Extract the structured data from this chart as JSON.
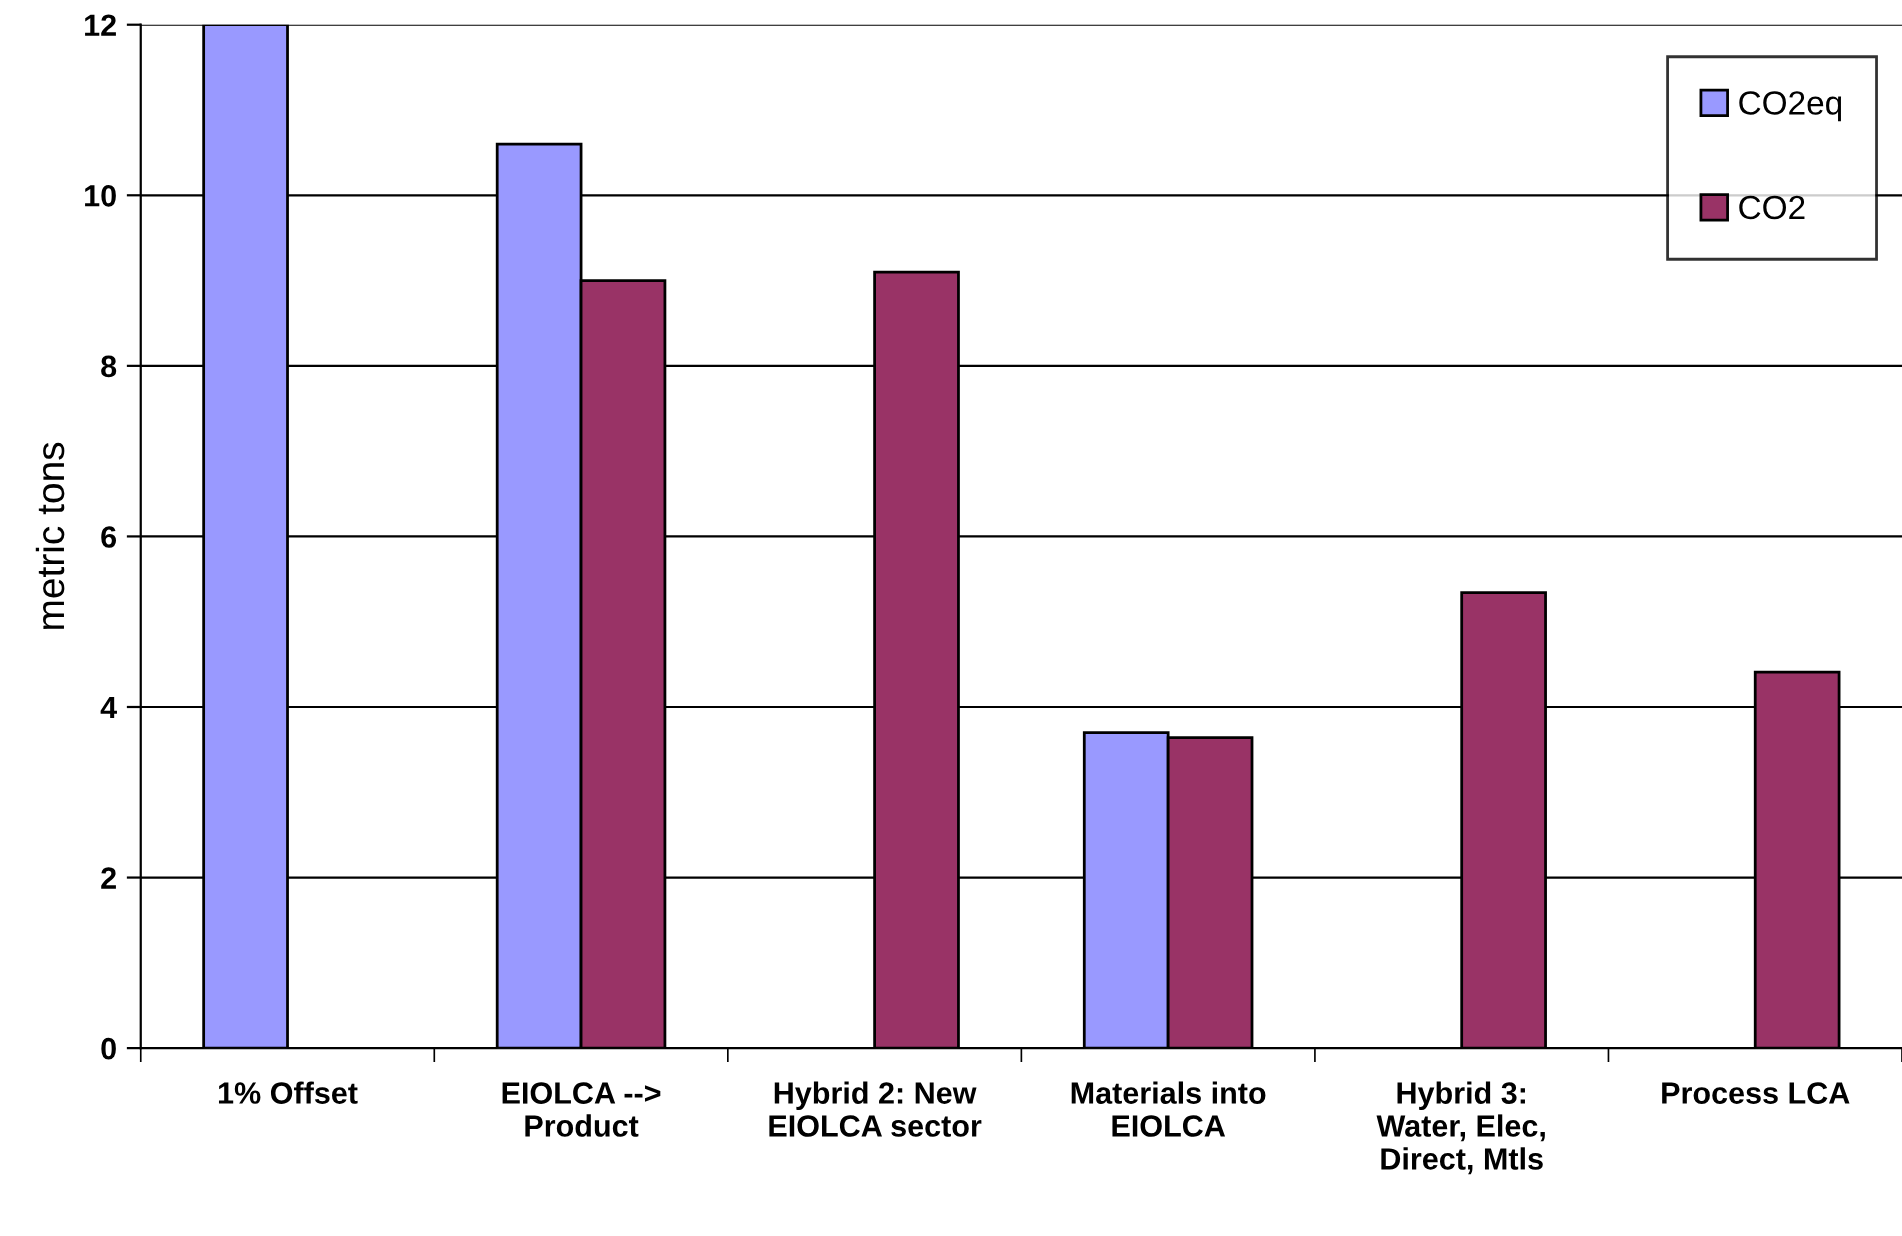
{
  "chart_data": {
    "type": "bar",
    "ylabel": "metric tons",
    "categories": [
      "1% Offset",
      "EIOLCA -->\nProduct",
      "Hybrid 2: New\nEIOLCA sector",
      "Materials into\nEIOLCA",
      "Hybrid 3:\nWater, Elec,\nDirect, Mtls",
      "Process LCA"
    ],
    "series": [
      {
        "name": "CO2eq",
        "color": "#9999ff",
        "values": [
          12.0,
          10.6,
          null,
          3.7,
          null,
          null
        ]
      },
      {
        "name": "CO2",
        "color": "#993366",
        "values": [
          null,
          9.0,
          9.1,
          3.64,
          5.34,
          4.41
        ]
      }
    ],
    "ylim": [
      0,
      12
    ],
    "yticks": [
      0,
      2,
      4,
      6,
      8,
      10,
      12
    ],
    "grid": "y",
    "legend": "top right"
  }
}
